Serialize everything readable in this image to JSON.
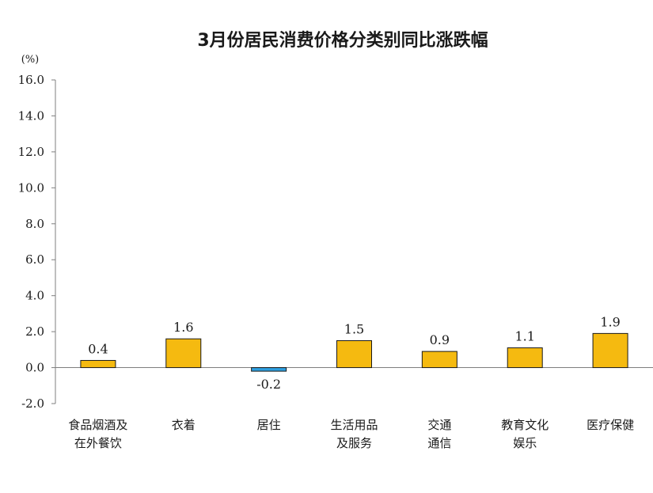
{
  "chart_data": {
    "type": "bar",
    "title": "3月份居民消费价格分类别同比涨跌幅",
    "unit_label": "(%)",
    "ylim": [
      -2.0,
      16.0
    ],
    "y_ticks": [
      "16.0",
      "14.0",
      "12.0",
      "10.0",
      "8.0",
      "6.0",
      "4.0",
      "2.0",
      "0.0",
      "-2.0"
    ],
    "y_tick_values": [
      16,
      14,
      12,
      10,
      8,
      6,
      4,
      2,
      0,
      -2
    ],
    "categories": [
      [
        "食品烟酒及",
        "在外餐饮"
      ],
      [
        "衣着"
      ],
      [
        "居住"
      ],
      [
        "生活用品",
        "及服务"
      ],
      [
        "交通",
        "通信"
      ],
      [
        "教育文化",
        "娱乐"
      ],
      [
        "医疗保健"
      ]
    ],
    "values": [
      0.4,
      1.6,
      -0.2,
      1.5,
      0.9,
      1.1,
      1.9
    ],
    "value_labels": [
      "0.4",
      "1.6",
      "-0.2",
      "1.5",
      "0.9",
      "1.1",
      "1.9"
    ],
    "legend": "none",
    "grid": false,
    "colors": {
      "positive": "#F5BA10",
      "negative": "#2E9FE0",
      "bar_border": "#1a1a1a",
      "axis": "#7f7f7f"
    }
  }
}
